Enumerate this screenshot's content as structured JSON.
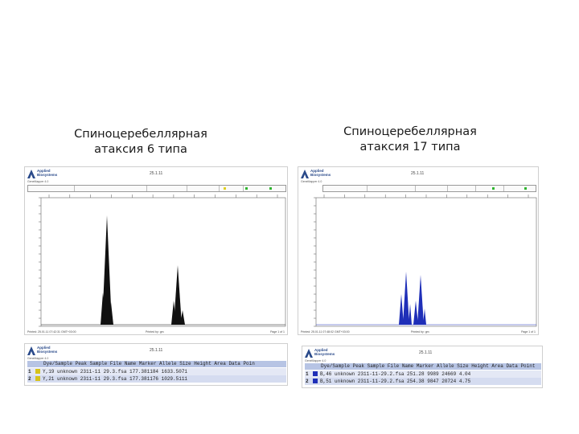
{
  "titles": {
    "left": {
      "line1": "Спиноцеребеллярная",
      "line2": "атаксия 6 типа"
    },
    "right": {
      "line1": "Спиноцеребеллярная",
      "line2": "атаксия 17 типа"
    }
  },
  "electropherogram_left": {
    "logo": {
      "line1": "Applied",
      "line2": "Biosystems"
    },
    "header_num": "25.1.11",
    "sub": "GeneMapper 4.0",
    "peak_color": "#111111",
    "footer_left": "Printed: 25.01.11 07:42:31 GMT+03:00",
    "footer_mid": "Printed by: gm",
    "footer_right": "Page 1 of 1"
  },
  "electropherogram_right": {
    "logo": {
      "line1": "Applied",
      "line2": "Biosystems"
    },
    "header_num": "25.1.11",
    "sub": "GeneMapper 4.0",
    "peak_color": "#1f2fb8",
    "footer_left": "Printed: 25.01.11 07:48:02 GMT+03:00",
    "footer_mid": "Printed by: gm",
    "footer_right": "Page 1 of 1"
  },
  "table_left": {
    "logo": {
      "line1": "Applied",
      "line2": "Biosystems"
    },
    "header_num": "25.1.11",
    "sub": "GeneMapper 4.0",
    "header": "Dye/Sample Peak Sample File Name    Marker Allele Size  Height Area  Data Poin",
    "rows": [
      {
        "idx": "1",
        "color": "#d6c21a",
        "text": "Y,19    unknown 2311-11 29.3.fsa          177.381184  1633.5071"
      },
      {
        "idx": "2",
        "color": "#d6c21a",
        "text": "Y,21    unknown 2311-11 29.3.fsa          177.381176  1029.5111"
      }
    ]
  },
  "table_right": {
    "logo": {
      "line1": "Applied",
      "line2": "Biosystems"
    },
    "header_num": "25.1.11",
    "sub": "GeneMapper 4.0",
    "header": "Dye/Sample Peak Sample File Name  Marker Allele Size  Height Area  Data Point",
    "rows": [
      {
        "idx": "1",
        "color": "#1f2fb8",
        "text": "B,46    unknown 2311-11-29.2.fsa     251.28 9989  24669 4.04"
      },
      {
        "idx": "2",
        "color": "#1f2fb8",
        "text": "B,51    unknown 2311-11-29.2.fsa     254.38 9847  20724 4.75"
      }
    ]
  }
}
